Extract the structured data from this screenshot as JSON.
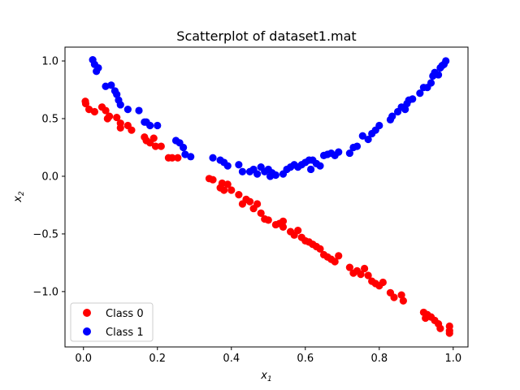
{
  "chart_data": {
    "type": "scatter",
    "title": "Scatterplot of dataset1.mat",
    "xlabel": "x",
    "xlabel_sub": "1",
    "ylabel": "x",
    "ylabel_sub": "2",
    "xlim": [
      -0.05,
      1.04
    ],
    "ylim": [
      -1.48,
      1.12
    ],
    "xticks": [
      0.0,
      0.2,
      0.4,
      0.6,
      0.8,
      1.0
    ],
    "xtick_labels": [
      "0.0",
      "0.2",
      "0.4",
      "0.6",
      "0.8",
      "1.0"
    ],
    "yticks": [
      -1.0,
      -0.5,
      0.0,
      0.5,
      1.0
    ],
    "ytick_labels": [
      "−1.0",
      "−0.5",
      "0.0",
      "0.5",
      "1.0"
    ],
    "grid": false,
    "legend_position": "lower-left",
    "series": [
      {
        "name": "Class 0",
        "color": "#ff0000",
        "points": [
          [
            0.005,
            0.65
          ],
          [
            0.006,
            0.63
          ],
          [
            0.015,
            0.58
          ],
          [
            0.03,
            0.56
          ],
          [
            0.05,
            0.6
          ],
          [
            0.06,
            0.57
          ],
          [
            0.065,
            0.5
          ],
          [
            0.07,
            0.52
          ],
          [
            0.1,
            0.46
          ],
          [
            0.1,
            0.42
          ],
          [
            0.09,
            0.51
          ],
          [
            0.12,
            0.44
          ],
          [
            0.13,
            0.4
          ],
          [
            0.165,
            0.34
          ],
          [
            0.17,
            0.31
          ],
          [
            0.18,
            0.29
          ],
          [
            0.19,
            0.33
          ],
          [
            0.195,
            0.26
          ],
          [
            0.21,
            0.26
          ],
          [
            0.23,
            0.16
          ],
          [
            0.24,
            0.16
          ],
          [
            0.255,
            0.16
          ],
          [
            0.34,
            -0.02
          ],
          [
            0.35,
            -0.03
          ],
          [
            0.37,
            -0.1
          ],
          [
            0.375,
            -0.06
          ],
          [
            0.38,
            -0.12
          ],
          [
            0.39,
            -0.07
          ],
          [
            0.4,
            -0.12
          ],
          [
            0.42,
            -0.16
          ],
          [
            0.43,
            -0.24
          ],
          [
            0.44,
            -0.2
          ],
          [
            0.45,
            -0.22
          ],
          [
            0.46,
            -0.28
          ],
          [
            0.47,
            -0.24
          ],
          [
            0.48,
            -0.32
          ],
          [
            0.49,
            -0.37
          ],
          [
            0.5,
            -0.38
          ],
          [
            0.52,
            -0.42
          ],
          [
            0.53,
            -0.41
          ],
          [
            0.54,
            -0.39
          ],
          [
            0.54,
            -0.44
          ],
          [
            0.56,
            -0.48
          ],
          [
            0.57,
            -0.51
          ],
          [
            0.58,
            -0.47
          ],
          [
            0.59,
            -0.53
          ],
          [
            0.6,
            -0.56
          ],
          [
            0.61,
            -0.57
          ],
          [
            0.62,
            -0.59
          ],
          [
            0.63,
            -0.61
          ],
          [
            0.64,
            -0.63
          ],
          [
            0.65,
            -0.68
          ],
          [
            0.66,
            -0.7
          ],
          [
            0.67,
            -0.72
          ],
          [
            0.68,
            -0.74
          ],
          [
            0.69,
            -0.69
          ],
          [
            0.72,
            -0.79
          ],
          [
            0.73,
            -0.84
          ],
          [
            0.74,
            -0.82
          ],
          [
            0.75,
            -0.85
          ],
          [
            0.76,
            -0.8
          ],
          [
            0.77,
            -0.86
          ],
          [
            0.78,
            -0.91
          ],
          [
            0.79,
            -0.93
          ],
          [
            0.8,
            -0.95
          ],
          [
            0.81,
            -0.92
          ],
          [
            0.83,
            -1.01
          ],
          [
            0.84,
            -1.05
          ],
          [
            0.86,
            -1.03
          ],
          [
            0.865,
            -1.08
          ],
          [
            0.92,
            -1.18
          ],
          [
            0.925,
            -1.23
          ],
          [
            0.93,
            -1.2
          ],
          [
            0.94,
            -1.22
          ],
          [
            0.95,
            -1.25
          ],
          [
            0.96,
            -1.28
          ],
          [
            0.965,
            -1.32
          ],
          [
            0.99,
            -1.3
          ],
          [
            0.99,
            -1.34
          ],
          [
            0.99,
            -1.36
          ]
        ]
      },
      {
        "name": "Class 1",
        "color": "#0000ff",
        "points": [
          [
            0.025,
            1.01
          ],
          [
            0.03,
            0.97
          ],
          [
            0.035,
            0.91
          ],
          [
            0.04,
            0.94
          ],
          [
            0.06,
            0.78
          ],
          [
            0.075,
            0.79
          ],
          [
            0.085,
            0.74
          ],
          [
            0.09,
            0.71
          ],
          [
            0.095,
            0.66
          ],
          [
            0.1,
            0.62
          ],
          [
            0.12,
            0.58
          ],
          [
            0.15,
            0.57
          ],
          [
            0.165,
            0.47
          ],
          [
            0.17,
            0.47
          ],
          [
            0.18,
            0.44
          ],
          [
            0.2,
            0.44
          ],
          [
            0.25,
            0.31
          ],
          [
            0.26,
            0.29
          ],
          [
            0.27,
            0.25
          ],
          [
            0.275,
            0.19
          ],
          [
            0.29,
            0.17
          ],
          [
            0.35,
            0.16
          ],
          [
            0.37,
            0.14
          ],
          [
            0.38,
            0.12
          ],
          [
            0.39,
            0.09
          ],
          [
            0.42,
            0.1
          ],
          [
            0.43,
            0.04
          ],
          [
            0.45,
            0.04
          ],
          [
            0.46,
            0.06
          ],
          [
            0.47,
            0.02
          ],
          [
            0.48,
            0.08
          ],
          [
            0.49,
            0.04
          ],
          [
            0.5,
            0.06
          ],
          [
            0.505,
            0.0
          ],
          [
            0.51,
            0.03
          ],
          [
            0.52,
            0.01
          ],
          [
            0.54,
            0.02
          ],
          [
            0.55,
            0.06
          ],
          [
            0.56,
            0.08
          ],
          [
            0.57,
            0.1
          ],
          [
            0.58,
            0.08
          ],
          [
            0.59,
            0.1
          ],
          [
            0.6,
            0.12
          ],
          [
            0.61,
            0.14
          ],
          [
            0.615,
            0.06
          ],
          [
            0.62,
            0.14
          ],
          [
            0.63,
            0.11
          ],
          [
            0.64,
            0.09
          ],
          [
            0.65,
            0.18
          ],
          [
            0.66,
            0.19
          ],
          [
            0.67,
            0.2
          ],
          [
            0.68,
            0.18
          ],
          [
            0.69,
            0.21
          ],
          [
            0.72,
            0.2
          ],
          [
            0.73,
            0.25
          ],
          [
            0.74,
            0.26
          ],
          [
            0.755,
            0.35
          ],
          [
            0.77,
            0.32
          ],
          [
            0.78,
            0.37
          ],
          [
            0.79,
            0.4
          ],
          [
            0.8,
            0.44
          ],
          [
            0.83,
            0.49
          ],
          [
            0.835,
            0.52
          ],
          [
            0.85,
            0.56
          ],
          [
            0.86,
            0.6
          ],
          [
            0.87,
            0.58
          ],
          [
            0.875,
            0.63
          ],
          [
            0.88,
            0.66
          ],
          [
            0.89,
            0.67
          ],
          [
            0.91,
            0.72
          ],
          [
            0.92,
            0.77
          ],
          [
            0.93,
            0.77
          ],
          [
            0.94,
            0.81
          ],
          [
            0.945,
            0.87
          ],
          [
            0.95,
            0.9
          ],
          [
            0.96,
            0.88
          ],
          [
            0.965,
            0.94
          ],
          [
            0.97,
            0.96
          ],
          [
            0.975,
            0.97
          ],
          [
            0.98,
            1.0
          ]
        ]
      }
    ]
  }
}
